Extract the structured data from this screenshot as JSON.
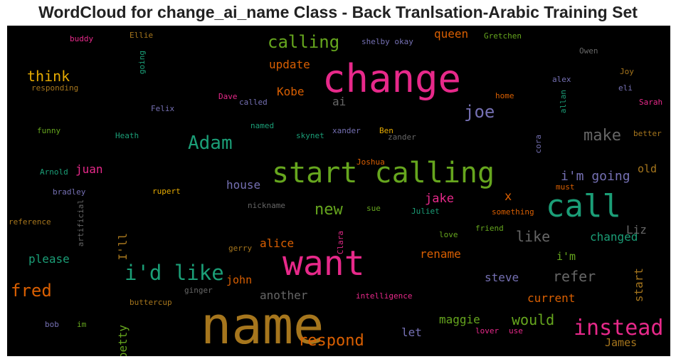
{
  "title": "WordCloud for change_ai_name Class - Back Tranlsation-Arabic Training Set",
  "chart_data": {
    "type": "wordcloud",
    "background": "#000000",
    "palette": [
      "#d95f02",
      "#7570b3",
      "#e7298a",
      "#66a61e",
      "#e6ab02",
      "#a6761d",
      "#666666",
      "#1b9e77"
    ],
    "words": [
      {
        "text": "name",
        "color": "#a6761d",
        "vertical": false
      },
      {
        "text": "change",
        "color": "#e7298a",
        "vertical": false
      },
      {
        "text": "want",
        "color": "#e7298a",
        "vertical": false
      },
      {
        "text": "start calling",
        "color": "#66a61e",
        "vertical": false
      },
      {
        "text": "call",
        "color": "#1b9e77",
        "vertical": false
      },
      {
        "text": "i'd like",
        "color": "#1b9e77",
        "vertical": false
      },
      {
        "text": "instead",
        "color": "#e7298a",
        "vertical": false
      },
      {
        "text": "Adam",
        "color": "#1b9e77",
        "vertical": false
      },
      {
        "text": "joe",
        "color": "#7570b3",
        "vertical": false
      },
      {
        "text": "fred",
        "color": "#d95f02",
        "vertical": false
      },
      {
        "text": "calling",
        "color": "#66a61e",
        "vertical": false
      },
      {
        "text": "respond",
        "color": "#d95f02",
        "vertical": false
      },
      {
        "text": "make",
        "color": "#666666",
        "vertical": false
      },
      {
        "text": "new",
        "color": "#66a61e",
        "vertical": false
      },
      {
        "text": "think",
        "color": "#e6ab02",
        "vertical": false
      },
      {
        "text": "i'm going",
        "color": "#7570b3",
        "vertical": false
      },
      {
        "text": "like",
        "color": "#666666",
        "vertical": false
      },
      {
        "text": "refer",
        "color": "#666666",
        "vertical": false
      },
      {
        "text": "would",
        "color": "#66a61e",
        "vertical": false
      },
      {
        "text": "jake",
        "color": "#e7298a",
        "vertical": false
      },
      {
        "text": "queen",
        "color": "#d95f02",
        "vertical": false
      },
      {
        "text": "update",
        "color": "#d95f02",
        "vertical": false
      },
      {
        "text": "Kobe",
        "color": "#d95f02",
        "vertical": false
      },
      {
        "text": "ai",
        "color": "#666666",
        "vertical": false
      },
      {
        "text": "house",
        "color": "#7570b3",
        "vertical": false
      },
      {
        "text": "alice",
        "color": "#d95f02",
        "vertical": false
      },
      {
        "text": "another",
        "color": "#666666",
        "vertical": false
      },
      {
        "text": "please",
        "color": "#1b9e77",
        "vertical": false
      },
      {
        "text": "juan",
        "color": "#e7298a",
        "vertical": false
      },
      {
        "text": "steve",
        "color": "#7570b3",
        "vertical": false
      },
      {
        "text": "current",
        "color": "#d95f02",
        "vertical": false
      },
      {
        "text": "changed",
        "color": "#1b9e77",
        "vertical": false
      },
      {
        "text": "rename",
        "color": "#d95f02",
        "vertical": false
      },
      {
        "text": "maggie",
        "color": "#66a61e",
        "vertical": false
      },
      {
        "text": "let",
        "color": "#7570b3",
        "vertical": false
      },
      {
        "text": "john",
        "color": "#d95f02",
        "vertical": false
      },
      {
        "text": "Liz",
        "color": "#666666",
        "vertical": false
      },
      {
        "text": "old",
        "color": "#a6761d",
        "vertical": false
      },
      {
        "text": "i'm",
        "color": "#66a61e",
        "vertical": false
      },
      {
        "text": "James",
        "color": "#a6761d",
        "vertical": false
      },
      {
        "text": "x",
        "color": "#d95f02",
        "vertical": false
      },
      {
        "text": "start",
        "color": "#a6761d",
        "vertical": true
      },
      {
        "text": "I'll",
        "color": "#a6761d",
        "vertical": true
      },
      {
        "text": "betty",
        "color": "#66a61e",
        "vertical": true
      },
      {
        "text": "buddy",
        "color": "#e7298a",
        "vertical": false
      },
      {
        "text": "Ellie",
        "color": "#a6761d",
        "vertical": false
      },
      {
        "text": "going",
        "color": "#1b9e77",
        "vertical": true
      },
      {
        "text": "responding",
        "color": "#a6761d",
        "vertical": false
      },
      {
        "text": "Felix",
        "color": "#7570b3",
        "vertical": false
      },
      {
        "text": "funny",
        "color": "#66a61e",
        "vertical": false
      },
      {
        "text": "Heath",
        "color": "#1b9e77",
        "vertical": false
      },
      {
        "text": "Arnold",
        "color": "#1b9e77",
        "vertical": false
      },
      {
        "text": "bradley",
        "color": "#7570b3",
        "vertical": false
      },
      {
        "text": "rupert",
        "color": "#e6ab02",
        "vertical": false
      },
      {
        "text": "reference",
        "color": "#a6761d",
        "vertical": false
      },
      {
        "text": "artificial",
        "color": "#666666",
        "vertical": true
      },
      {
        "text": "buttercup",
        "color": "#a6761d",
        "vertical": false
      },
      {
        "text": "bob",
        "color": "#7570b3",
        "vertical": false
      },
      {
        "text": "im",
        "color": "#66a61e",
        "vertical": false
      },
      {
        "text": "Dave",
        "color": "#e7298a",
        "vertical": false
      },
      {
        "text": "called",
        "color": "#7570b3",
        "vertical": false
      },
      {
        "text": "named",
        "color": "#1b9e77",
        "vertical": false
      },
      {
        "text": "skynet",
        "color": "#1b9e77",
        "vertical": false
      },
      {
        "text": "xander",
        "color": "#7570b3",
        "vertical": false
      },
      {
        "text": "Ben",
        "color": "#e6ab02",
        "vertical": false
      },
      {
        "text": "zander",
        "color": "#666666",
        "vertical": false
      },
      {
        "text": "Joshua",
        "color": "#d95f02",
        "vertical": false
      },
      {
        "text": "nickname",
        "color": "#666666",
        "vertical": false
      },
      {
        "text": "sue",
        "color": "#66a61e",
        "vertical": false
      },
      {
        "text": "Juliet",
        "color": "#1b9e77",
        "vertical": false
      },
      {
        "text": "Clara",
        "color": "#e7298a",
        "vertical": true
      },
      {
        "text": "gerry",
        "color": "#a6761d",
        "vertical": false
      },
      {
        "text": "ginger",
        "color": "#666666",
        "vertical": false
      },
      {
        "text": "intelligence",
        "color": "#e7298a",
        "vertical": false
      },
      {
        "text": "shelby okay",
        "color": "#7570b3",
        "vertical": false
      },
      {
        "text": "Gretchen",
        "color": "#66a61e",
        "vertical": false
      },
      {
        "text": "Owen",
        "color": "#666666",
        "vertical": false
      },
      {
        "text": "Joy",
        "color": "#a6761d",
        "vertical": false
      },
      {
        "text": "alex",
        "color": "#7570b3",
        "vertical": false
      },
      {
        "text": "eli",
        "color": "#7570b3",
        "vertical": false
      },
      {
        "text": "allan",
        "color": "#1b9e77",
        "vertical": true
      },
      {
        "text": "home",
        "color": "#d95f02",
        "vertical": false
      },
      {
        "text": "Sarah",
        "color": "#e7298a",
        "vertical": false
      },
      {
        "text": "better",
        "color": "#a6761d",
        "vertical": false
      },
      {
        "text": "cora",
        "color": "#7570b3",
        "vertical": true
      },
      {
        "text": "must",
        "color": "#d95f02",
        "vertical": false
      },
      {
        "text": "something",
        "color": "#d95f02",
        "vertical": false
      },
      {
        "text": "friend",
        "color": "#66a61e",
        "vertical": false
      },
      {
        "text": "love",
        "color": "#66a61e",
        "vertical": false
      },
      {
        "text": "lover",
        "color": "#e7298a",
        "vertical": false
      },
      {
        "text": "use",
        "color": "#e7298a",
        "vertical": false
      }
    ]
  }
}
